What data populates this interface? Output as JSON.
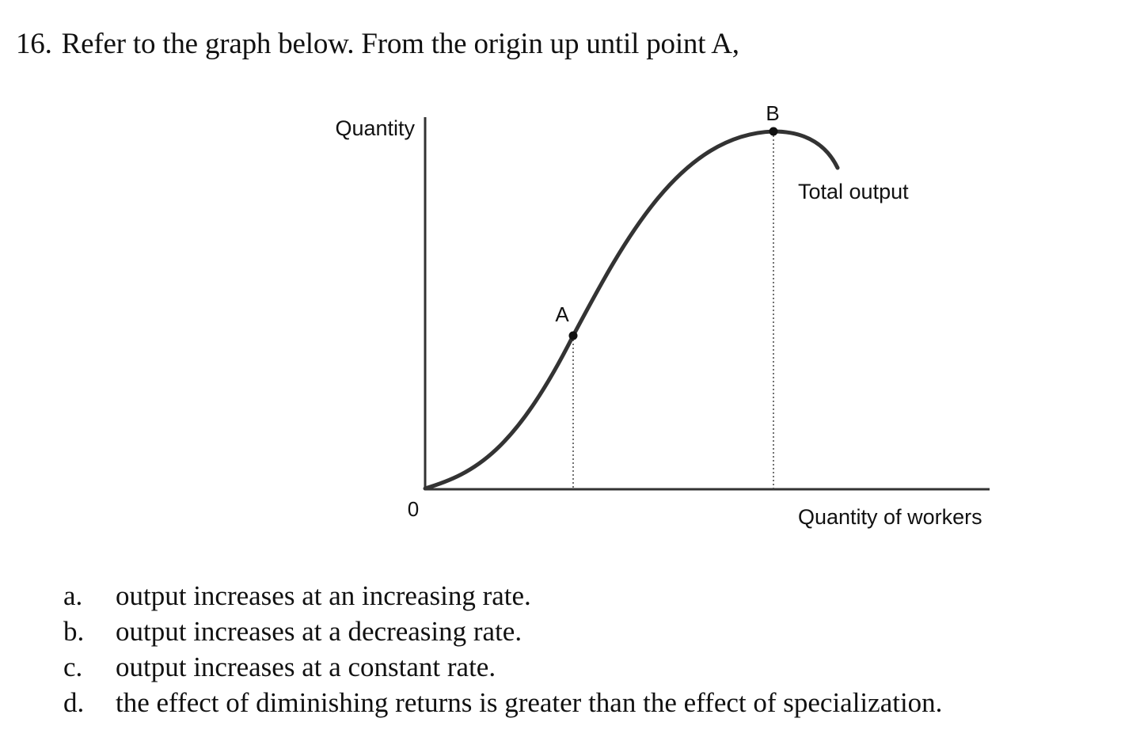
{
  "question": {
    "number": "16.",
    "text": "Refer to the graph below. From the origin up until point A,"
  },
  "chart_data": {
    "type": "line",
    "title": "",
    "xlabel": "Quantity of workers",
    "ylabel": "Quantity",
    "origin_label": "0",
    "series": [
      {
        "name": "Total output",
        "shape": "s-curve rising then falling",
        "points": [
          {
            "label": "",
            "x": 0.0,
            "y": 0.0
          },
          {
            "label": "A",
            "x": 0.5,
            "y": 0.5
          },
          {
            "label": "B",
            "x": 1.0,
            "y": 1.0
          }
        ]
      }
    ],
    "markers": [
      "A",
      "B"
    ],
    "grid": false,
    "legend": "none"
  },
  "choices": [
    {
      "letter": "a.",
      "text": "output increases at an increasing rate."
    },
    {
      "letter": "b.",
      "text": "output increases at a decreasing rate."
    },
    {
      "letter": "c.",
      "text": "output increases at a constant rate."
    },
    {
      "letter": "d.",
      "text": "the effect of diminishing returns is greater than the effect of specialization."
    }
  ]
}
